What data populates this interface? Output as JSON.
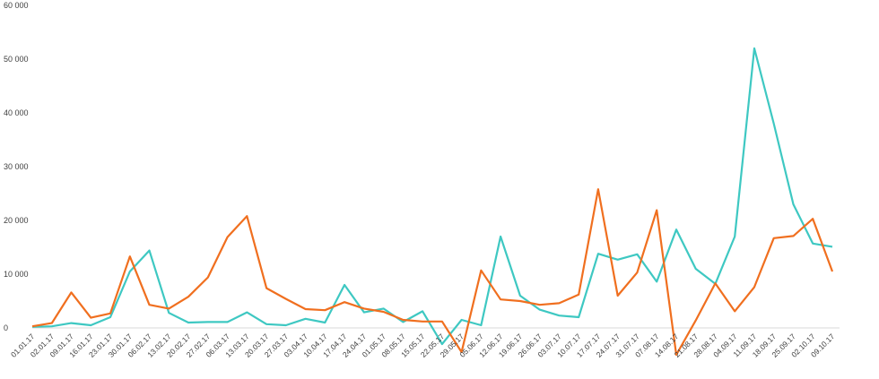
{
  "chart_data": {
    "type": "line",
    "title": "",
    "xlabel": "",
    "ylabel": "",
    "ylim": [
      0,
      60000
    ],
    "y_ticks": [
      0,
      10000,
      20000,
      30000,
      40000,
      50000,
      60000
    ],
    "y_tick_labels": [
      "0",
      "10 000",
      "20 000",
      "30 000",
      "40 000",
      "50 000",
      "60 000"
    ],
    "grid": false,
    "legend": "none",
    "categories": [
      "01.01.17",
      "02.01.17",
      "09.01.17",
      "16.01.17",
      "23.01.17",
      "30.01.17",
      "06.02.17",
      "13.02.17",
      "20.02.17",
      "27.02.17",
      "06.03.17",
      "13.03.17",
      "20.03.17",
      "27.03.17",
      "03.04.17",
      "10.04.17",
      "17.04.17",
      "24.04.17",
      "01.05.17",
      "08.05.17",
      "15.05.17",
      "22.05.17",
      "29.05.17",
      "05.06.17",
      "12.06.17",
      "19.06.17",
      "26.06.17",
      "03.07.17",
      "10.07.17",
      "17.07.17",
      "24.07.17",
      "31.07.17",
      "07.08.17",
      "14.08.17",
      "21.08.17",
      "28.08.17",
      "04.09.17",
      "11.09.17",
      "18.09.17",
      "25.09.17",
      "02.10.17",
      "09.10.17"
    ],
    "series": [
      {
        "color": "#3ec8c2",
        "values": [
          200,
          300,
          900,
          500,
          2000,
          10500,
          14400,
          2800,
          1000,
          1100,
          1100,
          2900,
          700,
          500,
          1700,
          1000,
          8000,
          2900,
          3600,
          1100,
          3100,
          -3000,
          1500,
          500,
          17000,
          6000,
          3400,
          2300,
          2000,
          13800,
          12700,
          13700,
          8600,
          18300,
          11000,
          8200,
          17000,
          52000,
          38000,
          23000,
          15700,
          15100
        ]
      },
      {
        "color": "#f06f1f",
        "values": [
          300,
          900,
          6600,
          1900,
          2700,
          13300,
          4300,
          3600,
          5800,
          9400,
          16900,
          20800,
          7400,
          5400,
          3500,
          3300,
          4800,
          3600,
          3000,
          1500,
          1200,
          1200,
          -4500,
          10700,
          5300,
          5000,
          4300,
          4600,
          6200,
          25800,
          6000,
          10300,
          21900,
          -5000,
          1400,
          8300,
          3100,
          7600,
          16700,
          17100,
          20300,
          10500
        ]
      }
    ]
  }
}
